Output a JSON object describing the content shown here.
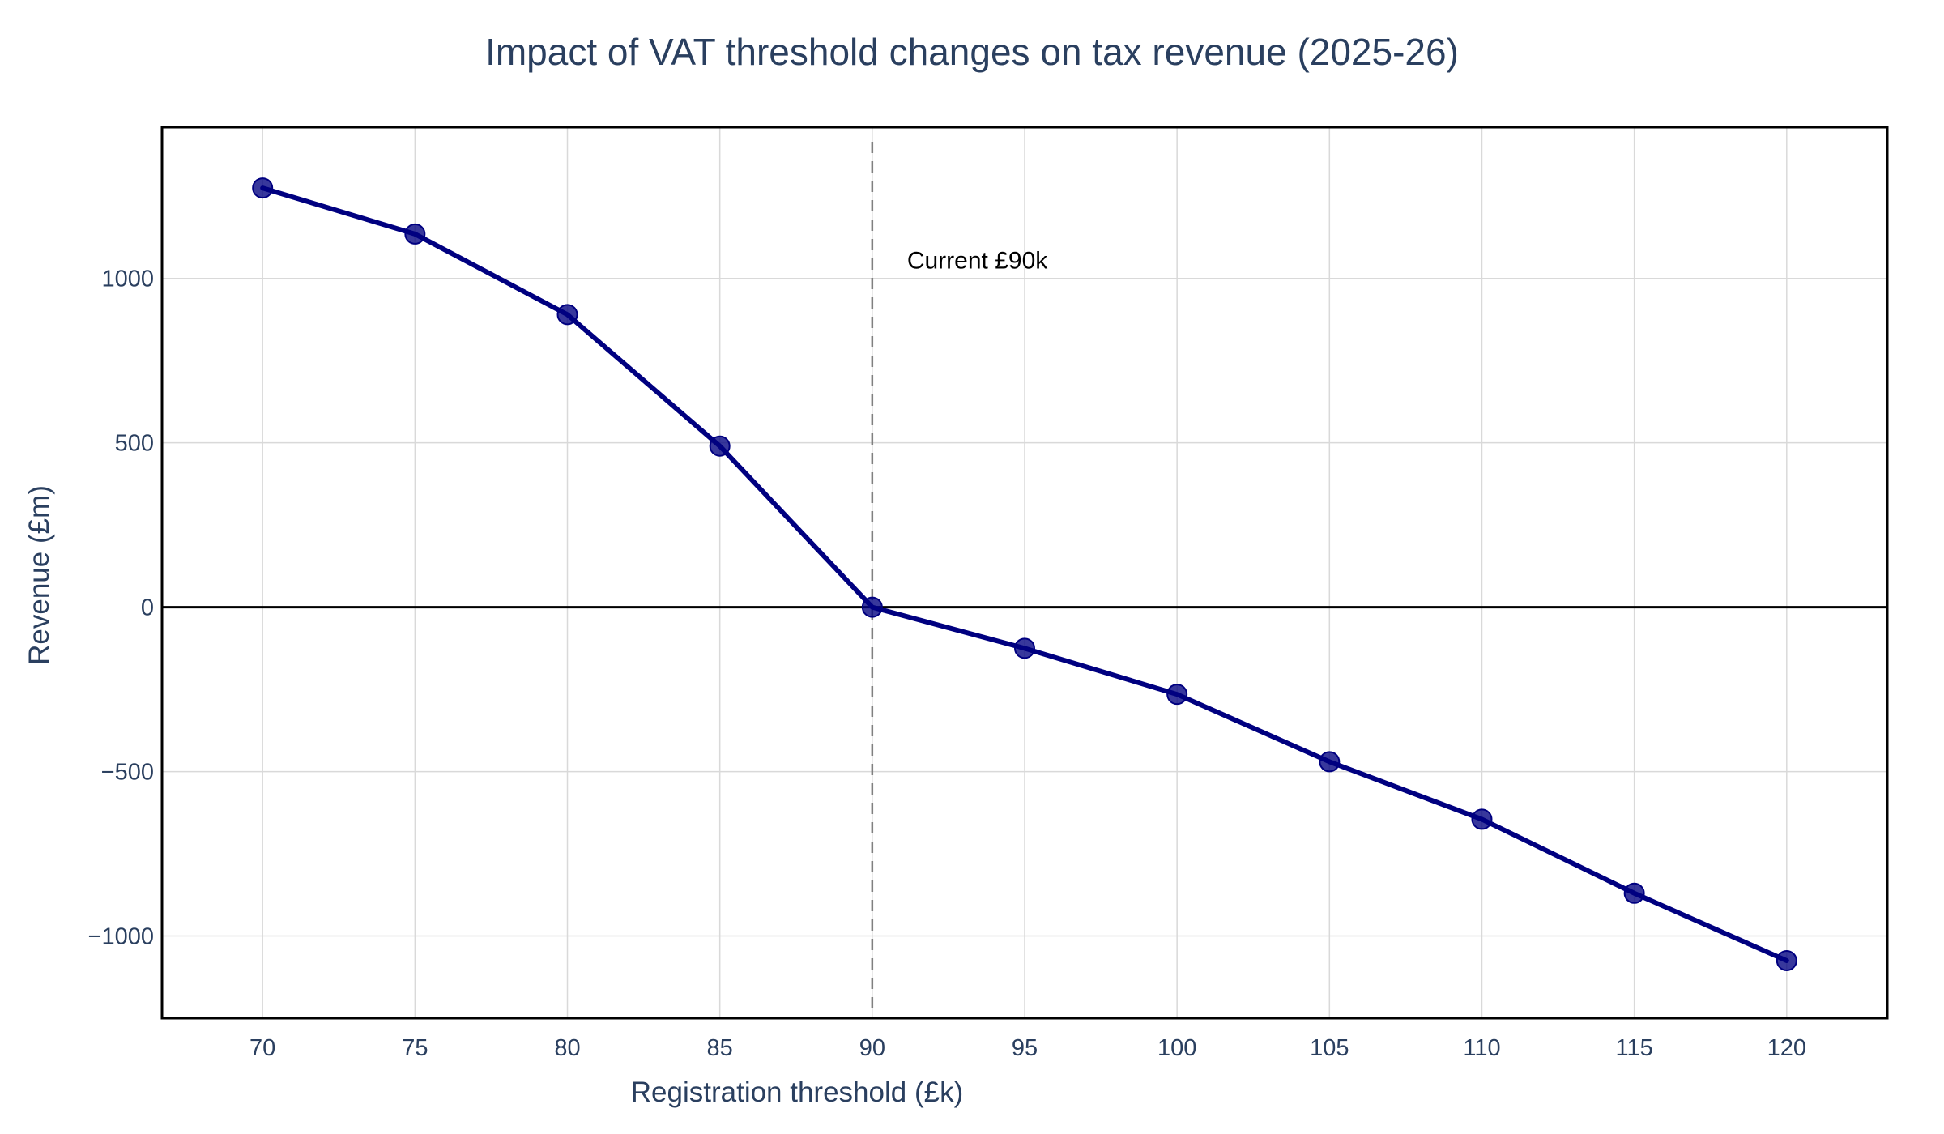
{
  "chart_data": {
    "type": "line",
    "title": "Impact of VAT threshold changes on tax revenue (2025-26)",
    "xlabel": "Registration threshold (£k)",
    "ylabel": "Revenue (£m)",
    "xlim": [
      66.7,
      123.3
    ],
    "ylim": [
      -1250,
      1460
    ],
    "x_ticks": [
      70,
      75,
      80,
      85,
      90,
      95,
      100,
      105,
      110,
      115,
      120
    ],
    "y_ticks": [
      -1000,
      -500,
      0,
      500,
      1000
    ],
    "y_tick_labels": [
      "−1000",
      "−500",
      "0",
      "500",
      "1000"
    ],
    "grid": true,
    "legend": "none",
    "x": [
      70,
      75,
      80,
      85,
      90,
      95,
      100,
      105,
      110,
      115,
      120
    ],
    "series": [
      {
        "values": [
          1275,
          1135,
          890,
          490,
          0,
          -125,
          -265,
          -470,
          -645,
          -870,
          -1075
        ],
        "color": "#000080",
        "marker": "circle"
      }
    ],
    "reference_lines": [
      {
        "axis": "x",
        "value": 90,
        "style": "dashed",
        "color": "#808080"
      },
      {
        "axis": "y",
        "value": 0,
        "style": "solid",
        "color": "#000000"
      }
    ],
    "annotations": [
      {
        "text": "Current £90k",
        "x": 90,
        "y": 1050
      }
    ]
  }
}
